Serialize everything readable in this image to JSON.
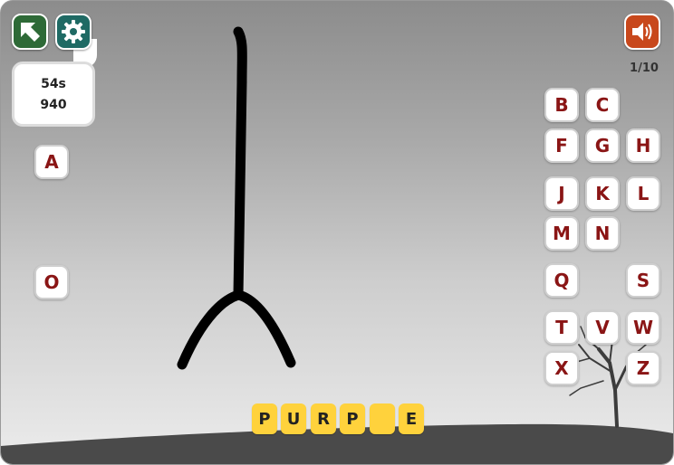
{
  "stats": {
    "time": "54s",
    "score": "940"
  },
  "progress": "1/10",
  "left_letters": [
    "A",
    "O"
  ],
  "keyboard": [
    "B",
    "C",
    "F",
    "G",
    "H",
    "J",
    "K",
    "L",
    "M",
    "N",
    "Q",
    "S",
    "T",
    "V",
    "W",
    "X",
    "Z"
  ],
  "word_slots": [
    "P",
    "U",
    "R",
    "P",
    "",
    "E"
  ],
  "icons": {
    "home": "arrow-up-left-icon",
    "settings": "gear-icon",
    "sound": "speaker-icon"
  },
  "colors": {
    "letter": "#8a1515",
    "slot": "#ffd23c",
    "home_button": "#2e6a37",
    "settings_button": "#1f6a64",
    "sound_button": "#c8481c"
  }
}
